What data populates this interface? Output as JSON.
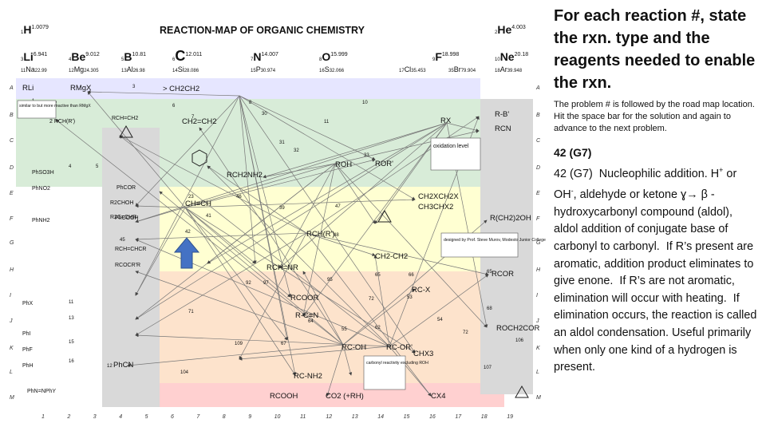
{
  "map": {
    "title": "REACTION-MAP OF ORGANIC CHEMISTRY",
    "elements": [
      {
        "sym": "H",
        "num": "1",
        "mass": "1.0079"
      },
      {
        "sym": "He",
        "num": "2",
        "mass": "4.003"
      },
      {
        "sym": "Li",
        "num": "3",
        "mass": "6.941"
      },
      {
        "sym": "Be",
        "num": "4",
        "mass": "9.012"
      },
      {
        "sym": "B",
        "num": "5",
        "mass": "10.81"
      },
      {
        "sym": "C",
        "num": "6",
        "mass": "12.011"
      },
      {
        "sym": "N",
        "num": "7",
        "mass": "14.007"
      },
      {
        "sym": "O",
        "num": "8",
        "mass": "15.999"
      },
      {
        "sym": "F",
        "num": "9",
        "mass": "18.998"
      },
      {
        "sym": "Ne",
        "num": "10",
        "mass": "20.18"
      }
    ],
    "elements_row2": [
      {
        "sym": "Na",
        "num": "11",
        "mass": "22.99"
      },
      {
        "sym": "Mg",
        "num": "12",
        "mass": "24.305"
      },
      {
        "sym": "Al",
        "num": "13",
        "mass": "26.98"
      },
      {
        "sym": "Si",
        "num": "14",
        "mass": "28.086"
      },
      {
        "sym": "P",
        "num": "15",
        "mass": "30.974"
      },
      {
        "sym": "S",
        "num": "16",
        "mass": "32.066"
      },
      {
        "sym": "Cl",
        "num": "17",
        "mass": "35.453"
      },
      {
        "sym": "Br",
        "num": "35",
        "mass": "79.904"
      },
      {
        "sym": "Ar",
        "num": "18",
        "mass": "39.948"
      }
    ],
    "row_letters": [
      "A",
      "B",
      "C",
      "D",
      "E",
      "F",
      "G",
      "H",
      "I",
      "J",
      "K",
      "L",
      "M"
    ],
    "col_numbers": [
      "1",
      "2",
      "3",
      "4",
      "5",
      "6",
      "7",
      "8",
      "9",
      "10",
      "11",
      "12",
      "13",
      "14",
      "15",
      "16",
      "17",
      "18",
      "19"
    ],
    "compounds": [
      {
        "t": "RLi"
      },
      {
        "t": "RMgX"
      },
      {
        "t": "> CH2CH2"
      },
      {
        "t": "CH2=CH2"
      },
      {
        "t": "RX"
      },
      {
        "t": "R-B'"
      },
      {
        "t": "RCN"
      },
      {
        "t": "ROH"
      },
      {
        "t": "ROR'"
      },
      {
        "t": "RCH2NH2"
      },
      {
        "t": "CH≡CH"
      },
      {
        "t": "CH2XCH2X"
      },
      {
        "t": "CH3CHX2"
      },
      {
        "t": "RCH(R')"
      },
      {
        "t": "R(CH2)2OH"
      },
      {
        "t": "CH2-CH2"
      },
      {
        "t": "RCH=NR"
      },
      {
        "t": "RCOOR"
      },
      {
        "t": "RC-X"
      },
      {
        "t": "RCOR"
      },
      {
        "t": "R-C≡N"
      },
      {
        "t": "RC-OH"
      },
      {
        "t": "RC-OR'"
      },
      {
        "t": "RC-NH2"
      },
      {
        "t": "PhCN"
      },
      {
        "t": "RCOOH"
      },
      {
        "t": "CO2 (+RH)"
      },
      {
        "t": "CX4"
      },
      {
        "t": "ROCH2COR"
      },
      {
        "t": "CHX3"
      },
      {
        "t": "2 RCH(R')"
      },
      {
        "t": "RCH=CH2"
      },
      {
        "t": "R2CHOH"
      },
      {
        "t": "R2C=CHR"
      },
      {
        "t": "PhNO2"
      },
      {
        "t": "PhNH2"
      },
      {
        "t": "PhX"
      },
      {
        "t": "PhI"
      },
      {
        "t": "PhF"
      },
      {
        "t": "PhH"
      },
      {
        "t": "PhCOR"
      },
      {
        "t": "PhCOOH"
      },
      {
        "t": "RCH=CHCR"
      },
      {
        "t": "RCOCR'R"
      },
      {
        "t": "PhN=NPhY"
      },
      {
        "t": "PhSO3H"
      }
    ],
    "legend_oxidation": "oxidation level",
    "legend_source": "designed by Prof. Steve Murov, Modesto Junior College",
    "legend_carbonyl": "carbonyl reactivity excluding ROH",
    "similar_note": "similar to but more reactive than RMgX"
  },
  "question": "For each reaction #, state the rxn. type and the reagents needed to enable the rxn.",
  "note": "The problem # is followed by the road map location.  Hit the space bar for the solution and again to advance to the next problem.",
  "problem_number": "42 (G7)",
  "answer": {
    "a": "42 (G7)  Nucleophilic addition. H",
    "plus": "+",
    "b": " or OH",
    "minus": "-",
    "c": ", aldehyde or ketone ",
    "gamma": "ɣ",
    "d": "→ β -hydroxycarbonyl compound (aldol), aldol addition of conjugate base of carbonyl to carbonyl.  If R’s present are aromatic, addition product eliminates to give enone.  If R’s are not aromatic, elimination will occur with heating.  If elimination occurs, the reaction is called an aldol condensation. Useful primarily when only one kind of a hydrogen is present."
  },
  "colors": {
    "row_a": "#e6e6ff",
    "row_b": "#d8ecd8",
    "row_f": "#ffffd2",
    "row_h": "#fde3cc",
    "row_m": "#ffd0d0",
    "gray": "#d9d9d9",
    "arrow": "#4472c4"
  }
}
